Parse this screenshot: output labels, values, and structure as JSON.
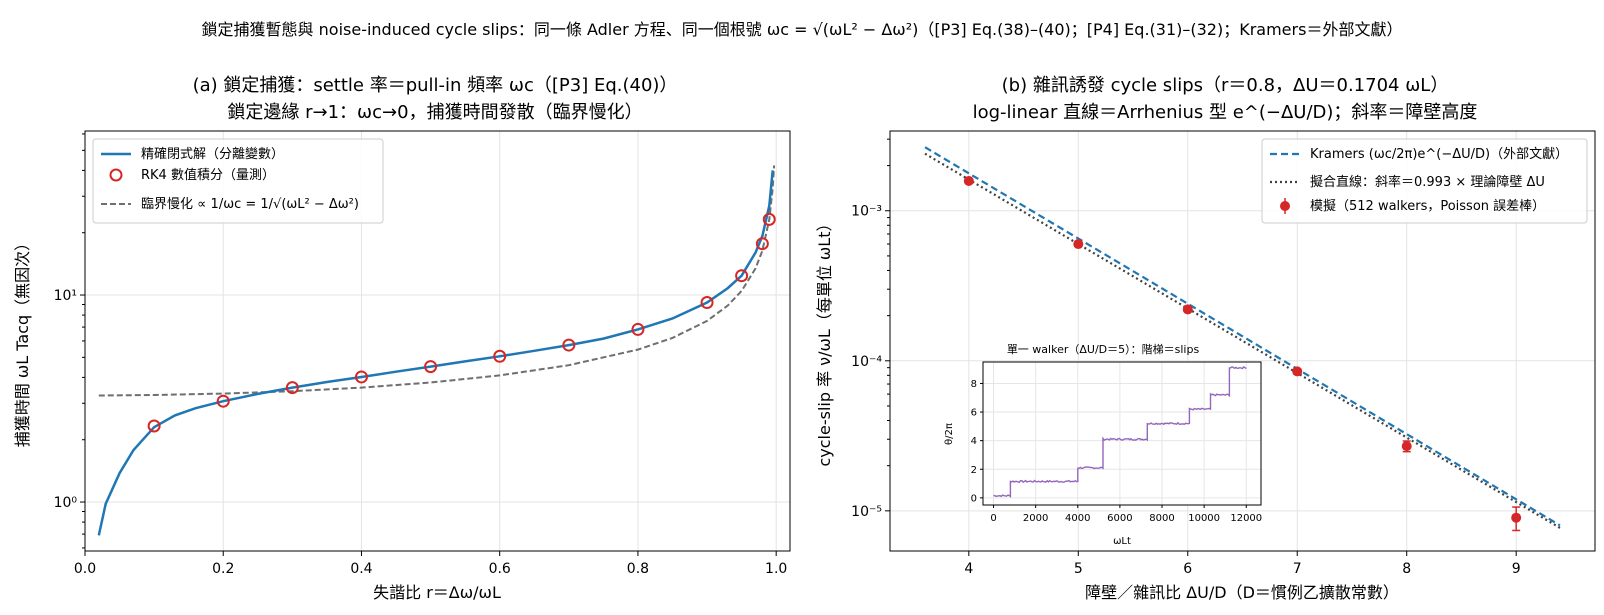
{
  "suptitle": "鎖定捕獲暫態與 noise-induced cycle slips：同一條 Adler 方程、同一個根號 ωc = √(ωL² − Δω²)（[P3] Eq.(38)–(40)；[P4] Eq.(31)–(32)；Kramers＝外部文獻）",
  "colors": {
    "blue": "#1f77b4",
    "red": "#d62728",
    "gray": "#6f6f6f",
    "darkgray": "#404040",
    "purple": "#9467bd"
  },
  "chart_data": [
    {
      "type": "line",
      "title": "(a) 鎖定捕獲：settle 率＝pull-in 頻率 ωc（[P3] Eq.(40)）",
      "subtitle": "鎖定邊緣 r→1：ωc→0，捕獲時間發散（臨界慢化）",
      "xlabel": "失諧比 r＝Δω/ωL",
      "ylabel": "捕獲時間 ωL Tacq（無因次）",
      "yscale": "log",
      "xlim": [
        0.0,
        1.02
      ],
      "ylim": [
        0.58,
        62
      ],
      "grid": true,
      "legend_position": "top-left",
      "x_ticks": [
        "0.0",
        "0.2",
        "0.4",
        "0.6",
        "0.8",
        "1.0"
      ],
      "y_ticks": [
        "10⁰",
        "10¹"
      ],
      "series": [
        {
          "name": "精確閉式解（分離變數）",
          "style": "line",
          "x": [
            0.02,
            0.03,
            0.05,
            0.07,
            0.1,
            0.13,
            0.16,
            0.2,
            0.25,
            0.3,
            0.35,
            0.4,
            0.45,
            0.5,
            0.55,
            0.6,
            0.65,
            0.7,
            0.75,
            0.8,
            0.85,
            0.9,
            0.93,
            0.95,
            0.97,
            0.98,
            0.99,
            0.995
          ],
          "y": [
            0.69,
            0.98,
            1.38,
            1.78,
            2.3,
            2.62,
            2.84,
            3.07,
            3.33,
            3.57,
            3.8,
            4.02,
            4.26,
            4.51,
            4.78,
            5.06,
            5.38,
            5.73,
            6.16,
            6.82,
            7.7,
            9.2,
            10.8,
            12.4,
            16.0,
            19.3,
            27.0,
            40.0
          ]
        },
        {
          "name": "RK4 數值積分（量測）",
          "style": "marker",
          "x": [
            0.1,
            0.2,
            0.3,
            0.4,
            0.5,
            0.6,
            0.7,
            0.8,
            0.9,
            0.95,
            0.98,
            0.99
          ],
          "y": [
            2.33,
            3.07,
            3.57,
            4.02,
            4.51,
            5.06,
            5.73,
            6.82,
            9.2,
            12.4,
            17.7,
            23.2
          ]
        },
        {
          "name": "臨界慢化 ∝ 1/ωc = 1/√(ωL² − Δω²)",
          "style": "dashed",
          "x": [
            0.02,
            0.1,
            0.2,
            0.3,
            0.4,
            0.5,
            0.6,
            0.7,
            0.8,
            0.85,
            0.9,
            0.93,
            0.95,
            0.97,
            0.98,
            0.99,
            0.995,
            0.997
          ],
          "y": [
            3.27,
            3.29,
            3.34,
            3.43,
            3.57,
            3.78,
            4.09,
            4.58,
            5.45,
            6.21,
            7.5,
            8.9,
            10.47,
            13.4,
            16.4,
            23.2,
            32.8,
            42.3
          ]
        }
      ]
    },
    {
      "type": "scatter",
      "title": "(b) 雜訊誘發 cycle slips（r＝0.8，ΔU＝0.1704 ωL）",
      "subtitle": "log-linear 直線＝Arrhenius 型 e^(−ΔU/D)；斜率＝障壁高度",
      "xlabel": "障壁／雜訊比 ΔU/D（D＝慣例乙擴散常數）",
      "ylabel": "cycle-slip 率 ν/ωL（每單位 ωLt）",
      "yscale": "log",
      "xlim": [
        3.28,
        9.72
      ],
      "ylim": [
        5.4e-06,
        0.0034
      ],
      "grid": true,
      "legend_position": "top-right",
      "x_ticks": [
        "4",
        "5",
        "6",
        "7",
        "8",
        "9"
      ],
      "y_ticks": [
        "10⁻⁵",
        "10⁻⁴",
        "10⁻³"
      ],
      "series": [
        {
          "name": "Kramers (ωc/2π)e^(−ΔU/D)（外部文獻）",
          "style": "dashed",
          "x": [
            3.6,
            9.4
          ],
          "y": [
            0.00265,
            8e-06
          ]
        },
        {
          "name": "擬合直線：斜率＝0.993 × 理論障壁 ΔU",
          "style": "dotted",
          "x": [
            3.6,
            9.4
          ],
          "y": [
            0.0024,
            7.7e-06
          ]
        },
        {
          "name": "模擬（512 walkers，Poisson 誤差棒）",
          "style": "marker-errorbar",
          "x": [
            4,
            5,
            6,
            7,
            8,
            9
          ],
          "y": [
            0.00158,
            0.0006,
            0.00022,
            8.5e-05,
            2.7e-05,
            9e-06
          ],
          "yerr": [
            3e-05,
            1.5e-05,
            7e-06,
            3.5e-06,
            2.2e-06,
            1.6e-06
          ]
        }
      ],
      "inset": {
        "type": "line",
        "title": "單一 walker（ΔU/D＝5）：階梯＝slips",
        "xlabel": "ωLt",
        "ylabel": "θ/2π",
        "xlim": [
          -500,
          12700
        ],
        "ylim": [
          -0.5,
          9.5
        ],
        "x_ticks": [
          "0",
          "2000",
          "4000",
          "6000",
          "8000",
          "10000",
          "12000"
        ],
        "y_ticks": [
          "0",
          "2",
          "4",
          "6",
          "8"
        ],
        "steps_x": [
          0,
          800,
          4000,
          5200,
          7300,
          9300,
          10300,
          11200,
          12000
        ],
        "steps_y": [
          0.15,
          1.15,
          2.1,
          4.1,
          5.2,
          6.2,
          7.2,
          9.1
        ]
      }
    }
  ]
}
